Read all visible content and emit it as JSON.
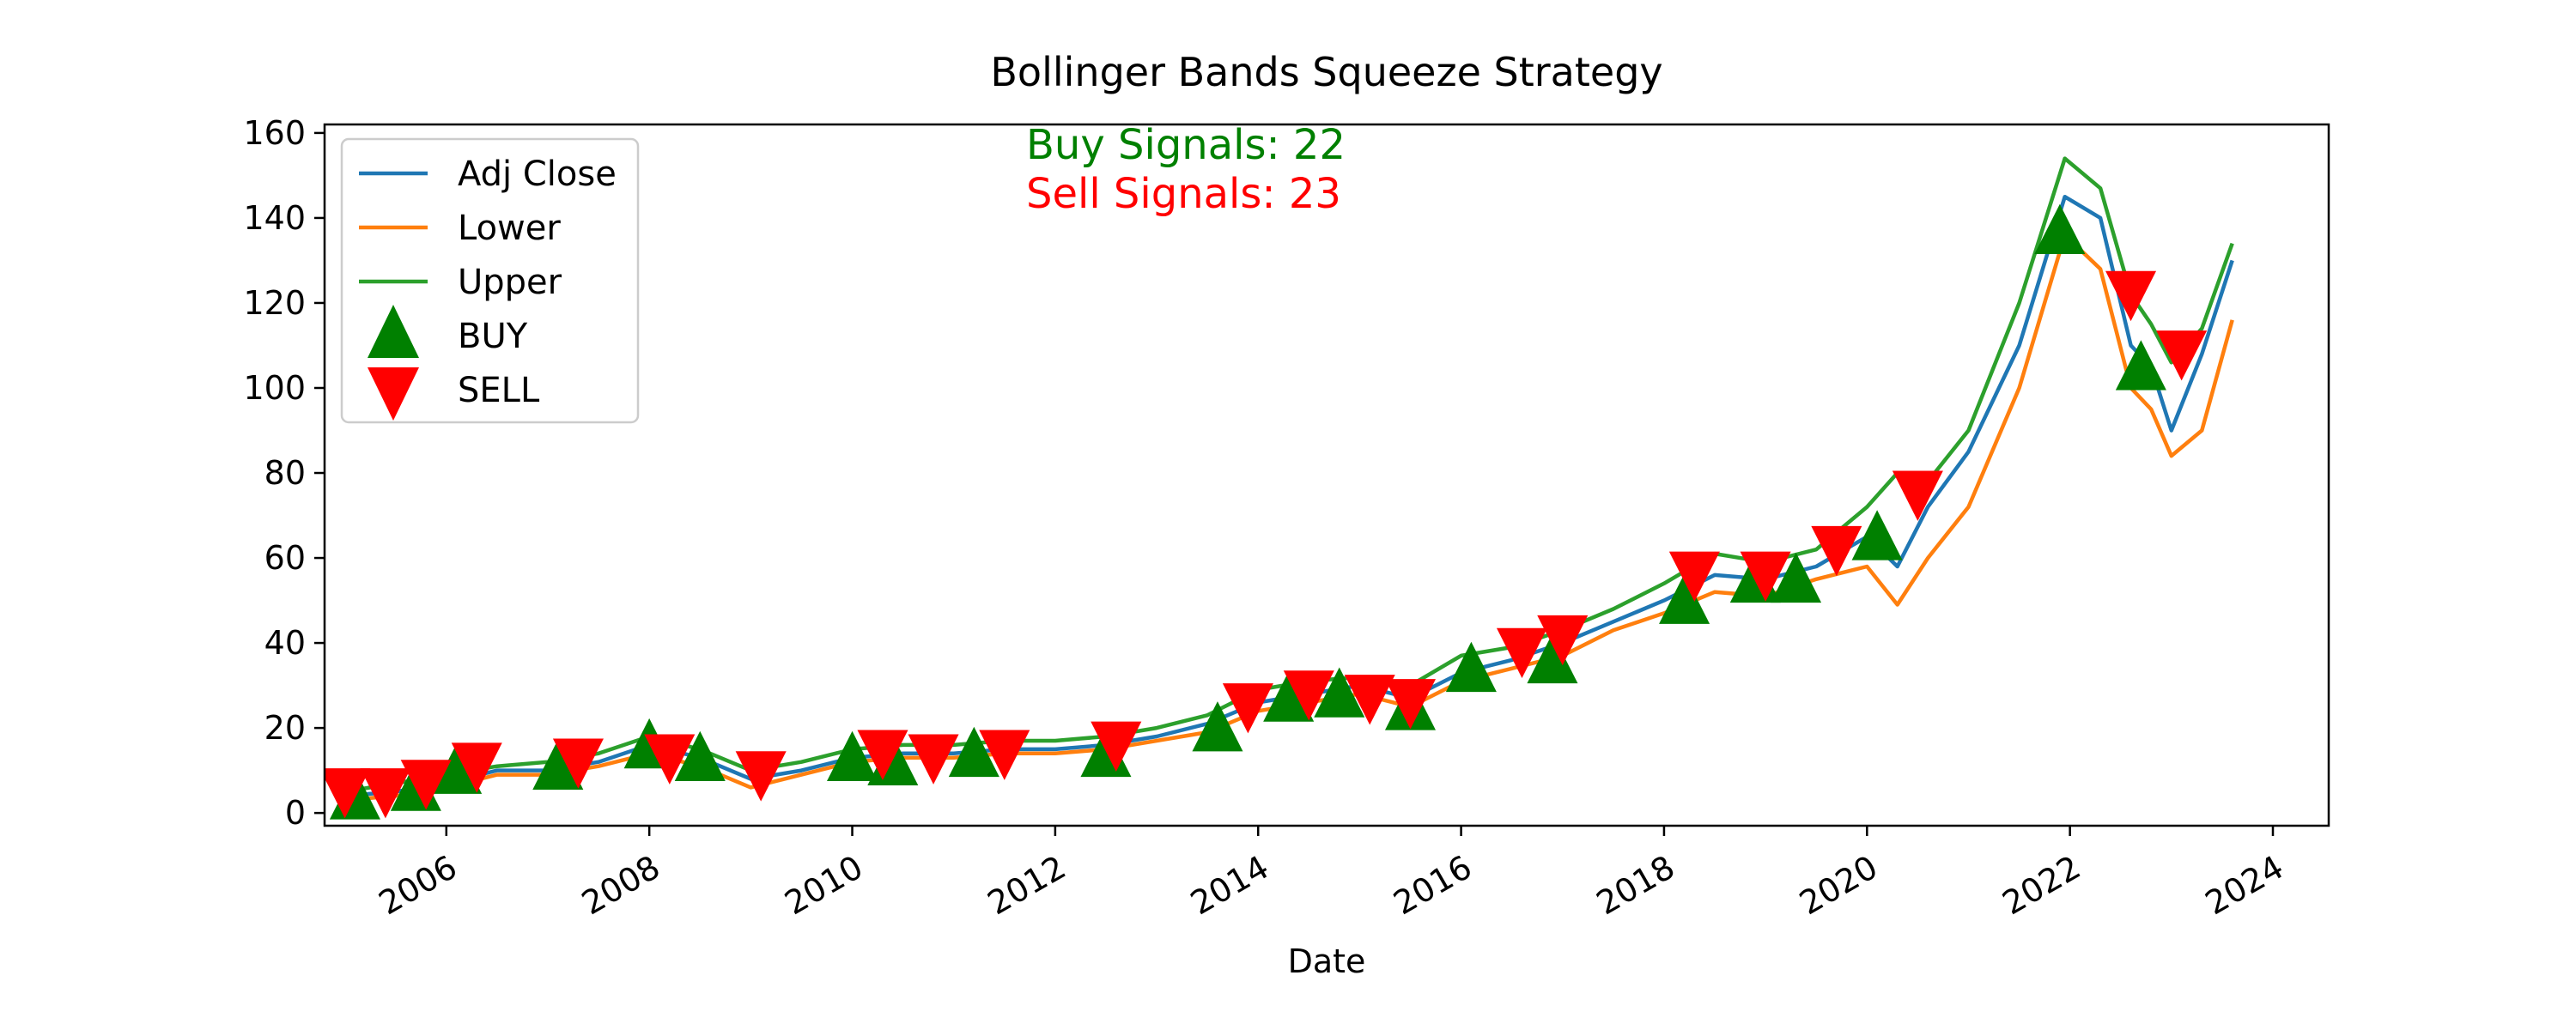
{
  "chart_data": {
    "type": "line",
    "title": "Bollinger Bands Squeeze Strategy",
    "xlabel": "Date",
    "ylabel": "",
    "xlim": [
      2004.8,
      2024.55
    ],
    "ylim": [
      -3,
      162
    ],
    "x_ticks": [
      2006,
      2008,
      2010,
      2012,
      2014,
      2016,
      2018,
      2020,
      2022,
      2024
    ],
    "x_tick_labels": [
      "2006",
      "2008",
      "2010",
      "2012",
      "2014",
      "2016",
      "2018",
      "2020",
      "2022",
      "2024"
    ],
    "y_ticks": [
      0,
      20,
      40,
      60,
      80,
      100,
      120,
      140,
      160
    ],
    "y_tick_labels": [
      "0",
      "20",
      "40",
      "60",
      "80",
      "100",
      "120",
      "140",
      "160"
    ],
    "grid": false,
    "legend_position": "top-left",
    "legend": [
      {
        "label": "Adj Close",
        "kind": "line",
        "color": "#1f77b4"
      },
      {
        "label": "Lower",
        "kind": "line",
        "color": "#ff7f0e"
      },
      {
        "label": "Upper",
        "kind": "line",
        "color": "#2ca02c"
      },
      {
        "label": "BUY",
        "kind": "marker-up",
        "color": "#008000"
      },
      {
        "label": "SELL",
        "kind": "marker-down",
        "color": "#ff0000"
      }
    ],
    "annotations": {
      "buy": {
        "text": "Buy Signals: 22",
        "color": "#008000"
      },
      "sell": {
        "text": "Sell Signals: 23",
        "color": "#ff0000"
      }
    },
    "series": [
      {
        "name": "Adj Close",
        "color": "#1f77b4",
        "points": [
          [
            2005.0,
            4
          ],
          [
            2005.5,
            5
          ],
          [
            2006.0,
            7
          ],
          [
            2006.5,
            10
          ],
          [
            2007.0,
            10
          ],
          [
            2007.5,
            12
          ],
          [
            2008.0,
            16
          ],
          [
            2008.5,
            13
          ],
          [
            2009.0,
            8
          ],
          [
            2009.5,
            10
          ],
          [
            2010.0,
            13
          ],
          [
            2010.5,
            14
          ],
          [
            2011.0,
            14
          ],
          [
            2011.5,
            15
          ],
          [
            2012.0,
            15
          ],
          [
            2012.5,
            16
          ],
          [
            2013.0,
            18
          ],
          [
            2013.5,
            21
          ],
          [
            2014.0,
            26
          ],
          [
            2014.5,
            28
          ],
          [
            2015.0,
            30
          ],
          [
            2015.5,
            27
          ],
          [
            2016.0,
            33
          ],
          [
            2016.5,
            36
          ],
          [
            2017.0,
            40
          ],
          [
            2017.5,
            45
          ],
          [
            2018.0,
            50
          ],
          [
            2018.5,
            56
          ],
          [
            2019.0,
            55
          ],
          [
            2019.5,
            58
          ],
          [
            2020.0,
            65
          ],
          [
            2020.3,
            58
          ],
          [
            2020.6,
            72
          ],
          [
            2021.0,
            85
          ],
          [
            2021.5,
            110
          ],
          [
            2021.95,
            145
          ],
          [
            2022.3,
            140
          ],
          [
            2022.6,
            110
          ],
          [
            2022.8,
            105
          ],
          [
            2023.0,
            90
          ],
          [
            2023.3,
            108
          ],
          [
            2023.6,
            130
          ]
        ]
      },
      {
        "name": "Lower",
        "color": "#ff7f0e",
        "points": [
          [
            2005.0,
            3
          ],
          [
            2005.5,
            4
          ],
          [
            2006.0,
            6
          ],
          [
            2006.5,
            9
          ],
          [
            2007.0,
            9
          ],
          [
            2007.5,
            11
          ],
          [
            2008.0,
            14
          ],
          [
            2008.5,
            11
          ],
          [
            2009.0,
            6
          ],
          [
            2009.5,
            9
          ],
          [
            2010.0,
            12
          ],
          [
            2010.5,
            13
          ],
          [
            2011.0,
            13
          ],
          [
            2011.5,
            14
          ],
          [
            2012.0,
            14
          ],
          [
            2012.5,
            15
          ],
          [
            2013.0,
            17
          ],
          [
            2013.5,
            19
          ],
          [
            2014.0,
            24
          ],
          [
            2014.5,
            26
          ],
          [
            2015.0,
            28
          ],
          [
            2015.5,
            25
          ],
          [
            2016.0,
            31
          ],
          [
            2016.5,
            34
          ],
          [
            2017.0,
            37
          ],
          [
            2017.5,
            43
          ],
          [
            2018.0,
            47
          ],
          [
            2018.5,
            52
          ],
          [
            2019.0,
            51
          ],
          [
            2019.5,
            55
          ],
          [
            2020.0,
            58
          ],
          [
            2020.3,
            49
          ],
          [
            2020.6,
            60
          ],
          [
            2021.0,
            72
          ],
          [
            2021.5,
            100
          ],
          [
            2021.95,
            136
          ],
          [
            2022.3,
            128
          ],
          [
            2022.6,
            100
          ],
          [
            2022.8,
            95
          ],
          [
            2023.0,
            84
          ],
          [
            2023.3,
            90
          ],
          [
            2023.6,
            116
          ]
        ]
      },
      {
        "name": "Upper",
        "color": "#2ca02c",
        "points": [
          [
            2005.0,
            5
          ],
          [
            2005.5,
            7
          ],
          [
            2006.0,
            9
          ],
          [
            2006.5,
            11
          ],
          [
            2007.0,
            12
          ],
          [
            2007.5,
            14
          ],
          [
            2008.0,
            18
          ],
          [
            2008.5,
            15
          ],
          [
            2009.0,
            10
          ],
          [
            2009.5,
            12
          ],
          [
            2010.0,
            15
          ],
          [
            2010.5,
            16
          ],
          [
            2011.0,
            16
          ],
          [
            2011.5,
            17
          ],
          [
            2012.0,
            17
          ],
          [
            2012.5,
            18
          ],
          [
            2013.0,
            20
          ],
          [
            2013.5,
            23
          ],
          [
            2014.0,
            29
          ],
          [
            2014.5,
            31
          ],
          [
            2015.0,
            32
          ],
          [
            2015.5,
            30
          ],
          [
            2016.0,
            37
          ],
          [
            2016.5,
            39
          ],
          [
            2017.0,
            43
          ],
          [
            2017.5,
            48
          ],
          [
            2018.0,
            54
          ],
          [
            2018.5,
            61
          ],
          [
            2019.0,
            59
          ],
          [
            2019.5,
            62
          ],
          [
            2020.0,
            72
          ],
          [
            2020.3,
            80
          ],
          [
            2020.6,
            78
          ],
          [
            2021.0,
            90
          ],
          [
            2021.5,
            120
          ],
          [
            2021.95,
            154
          ],
          [
            2022.3,
            147
          ],
          [
            2022.6,
            122
          ],
          [
            2022.8,
            115
          ],
          [
            2023.0,
            106
          ],
          [
            2023.3,
            114
          ],
          [
            2023.6,
            134
          ]
        ]
      }
    ],
    "buy_signals": [
      [
        2005.1,
        3
      ],
      [
        2005.7,
        5
      ],
      [
        2006.1,
        9
      ],
      [
        2007.1,
        10
      ],
      [
        2008.0,
        15
      ],
      [
        2008.5,
        12
      ],
      [
        2010.0,
        12
      ],
      [
        2010.4,
        11
      ],
      [
        2011.2,
        13
      ],
      [
        2012.5,
        13
      ],
      [
        2013.6,
        19
      ],
      [
        2014.3,
        26
      ],
      [
        2014.8,
        27
      ],
      [
        2015.5,
        24
      ],
      [
        2016.1,
        33
      ],
      [
        2016.9,
        35
      ],
      [
        2018.2,
        49
      ],
      [
        2018.9,
        54
      ],
      [
        2019.3,
        54
      ],
      [
        2020.1,
        64
      ],
      [
        2021.9,
        136
      ],
      [
        2022.7,
        104
      ]
    ],
    "sell_signals": [
      [
        2005.0,
        6
      ],
      [
        2005.4,
        6
      ],
      [
        2005.8,
        8
      ],
      [
        2006.3,
        12
      ],
      [
        2007.3,
        13
      ],
      [
        2008.2,
        14
      ],
      [
        2009.1,
        10
      ],
      [
        2010.3,
        15
      ],
      [
        2010.8,
        14
      ],
      [
        2011.5,
        15
      ],
      [
        2012.6,
        17
      ],
      [
        2013.9,
        26
      ],
      [
        2014.5,
        29
      ],
      [
        2015.1,
        28
      ],
      [
        2015.5,
        27
      ],
      [
        2016.6,
        39
      ],
      [
        2017.0,
        42
      ],
      [
        2018.3,
        57
      ],
      [
        2019.0,
        57
      ],
      [
        2019.7,
        63
      ],
      [
        2020.5,
        76
      ],
      [
        2022.6,
        123
      ],
      [
        2023.1,
        109
      ]
    ]
  }
}
